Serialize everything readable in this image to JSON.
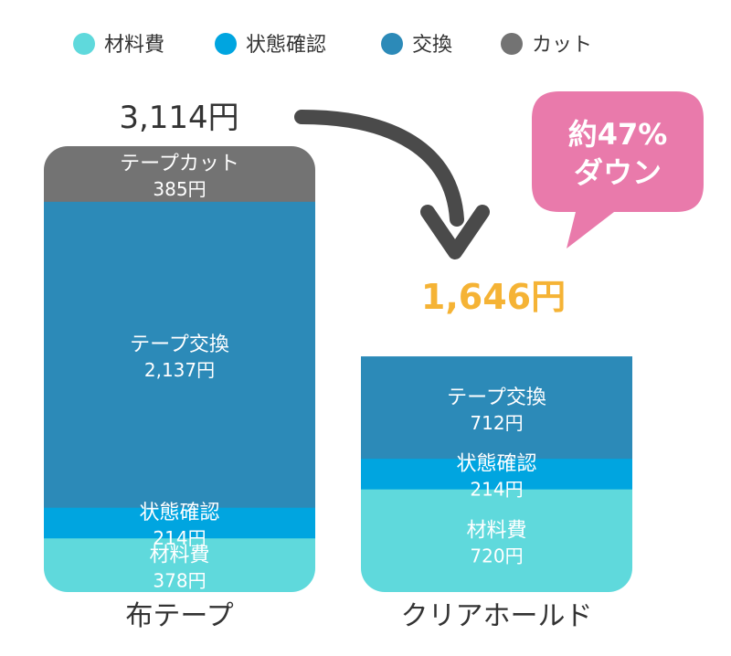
{
  "chart_data": {
    "type": "bar",
    "stacked": true,
    "categories": [
      "布テープ",
      "クリアホールド"
    ],
    "series": [
      {
        "name": "材料費",
        "label": "材料費",
        "values": [
          378,
          720
        ],
        "color": "#5fd9dc"
      },
      {
        "name": "状態確認",
        "label": "状態確認",
        "values": [
          214,
          214
        ],
        "color": "#00a5e0"
      },
      {
        "name": "交換",
        "label": "テープ交換",
        "values": [
          2137,
          712
        ],
        "color": "#2c8ab8"
      },
      {
        "name": "カット",
        "label": "テープカット",
        "values": [
          385,
          0
        ],
        "color": "#737373"
      }
    ],
    "value_labels": [
      [
        "378円",
        "214円",
        "2,137円",
        "385円"
      ],
      [
        "720円",
        "214円",
        "712円",
        ""
      ]
    ],
    "totals": [
      "3,114円",
      "1,646円"
    ],
    "legend": [
      "材料費",
      "状態確認",
      "交換",
      "カット"
    ],
    "legend_position": "top-left",
    "callout": [
      "約47%",
      "ダウン"
    ],
    "colors": {
      "total_highlight": "#f5b335",
      "callout": "#e97aab",
      "arrow": "#4a4a4a",
      "text_dark": "#333333"
    },
    "grid": false
  }
}
